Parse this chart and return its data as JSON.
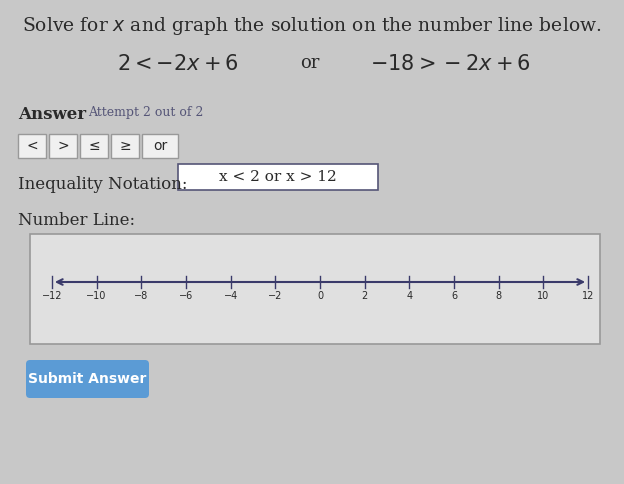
{
  "bg_color": "#c8c8c8",
  "title_text": "Solve for $x$ and graph the solution on the number line below.",
  "equation_line1": "$2 < -2x+6$",
  "equation_or": "or",
  "equation_line2": "$-18 > -2x+6$",
  "answer_label": "Answer",
  "attempt_text": "Attempt 2 out of 2",
  "buttons": [
    "<",
    ">",
    "≤",
    "≥",
    "or"
  ],
  "inequality_label": "Inequality Notation:",
  "inequality_value": "x < 2 or x > 12",
  "numberline_label": "Number Line:",
  "submit_text": "Submit Answer",
  "submit_color": "#5b9bd5",
  "number_line_ticks": [
    -12,
    -10,
    -8,
    -6,
    -4,
    -2,
    0,
    2,
    4,
    6,
    8,
    10,
    12
  ],
  "number_line_box_color": "#e0e0e0",
  "number_line_border_color": "#999999",
  "line_color": "#3a3a6a",
  "text_color": "#2a2a2a",
  "button_bg": "#f0f0f0",
  "button_border": "#999999"
}
